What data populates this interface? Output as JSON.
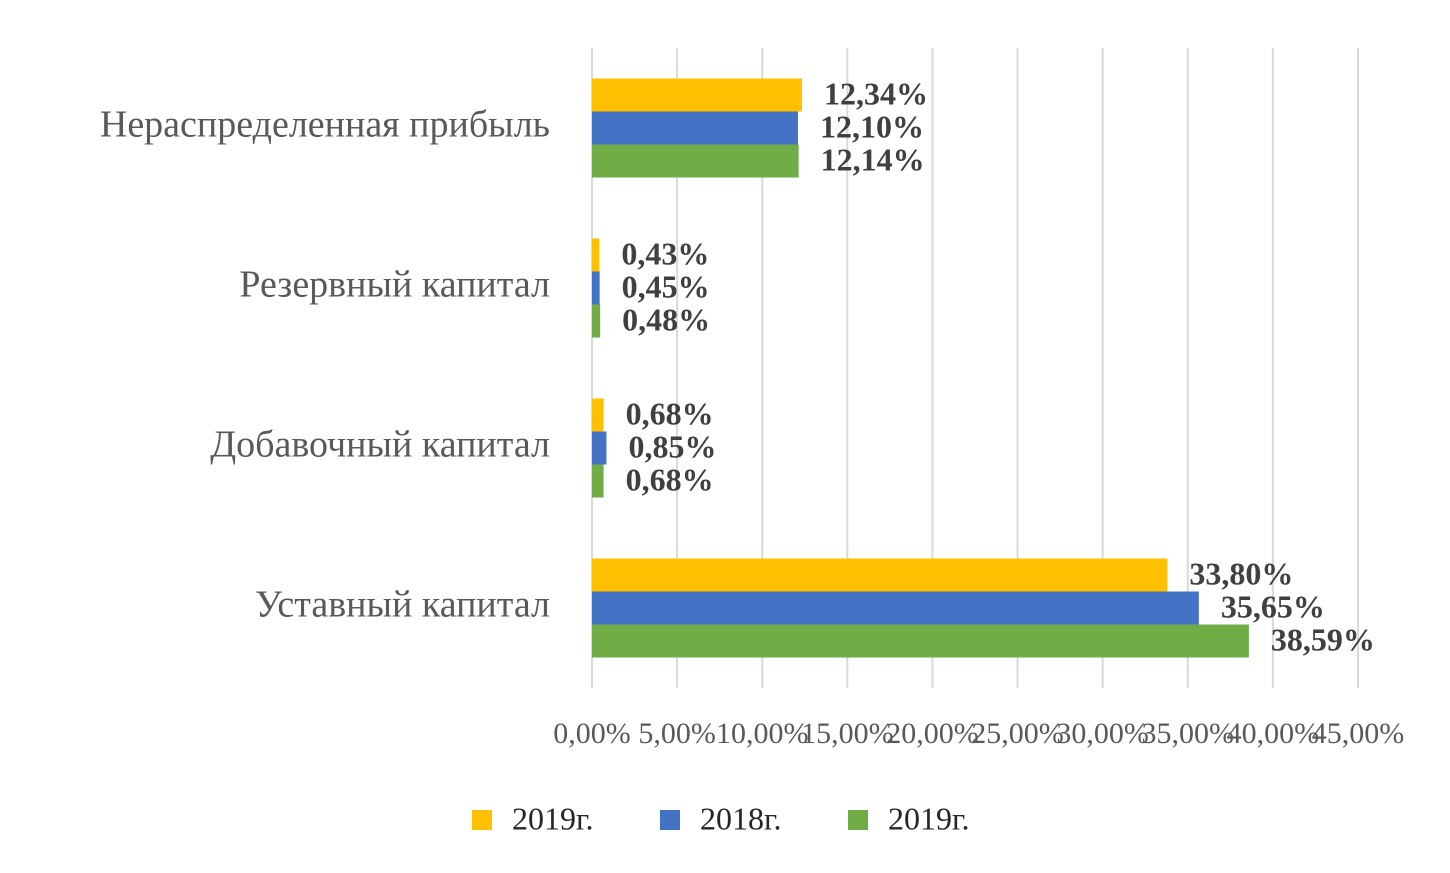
{
  "chart_data": {
    "type": "barh",
    "categories": [
      "Нераспределенная прибыль",
      "Резервный капитал",
      "Добавочный капитал",
      "Уставный капитал"
    ],
    "series": [
      {
        "name": "2019г.",
        "color": "#FFC000",
        "values": [
          12.34,
          0.43,
          0.68,
          33.8
        ],
        "value_labels": [
          "12,34%",
          "0,43%",
          "0,68%",
          "33,80%"
        ]
      },
      {
        "name": "2018г.",
        "color": "#4472C4",
        "values": [
          12.1,
          0.45,
          0.85,
          35.65
        ],
        "value_labels": [
          "12,10%",
          "0,45%",
          "0,85%",
          "35,65%"
        ]
      },
      {
        "name": "2019г.",
        "color": "#70AD47",
        "values": [
          12.14,
          0.48,
          0.68,
          38.59
        ],
        "value_labels": [
          "12,14%",
          "0,48%",
          "0,68%",
          "38,59%"
        ]
      }
    ],
    "xlim": [
      0,
      45
    ],
    "xticks": [
      {
        "value": 0,
        "label": "0,00%"
      },
      {
        "value": 5,
        "label": "5,00%"
      },
      {
        "value": 10,
        "label": "10,00%"
      },
      {
        "value": 15,
        "label": "15,00%"
      },
      {
        "value": 20,
        "label": "20,00%"
      },
      {
        "value": 25,
        "label": "25,00%"
      },
      {
        "value": 30,
        "label": "30,00%"
      },
      {
        "value": 35,
        "label": "35,00%"
      },
      {
        "value": 40,
        "label": "40,00%"
      },
      {
        "value": 45,
        "label": "45,00%"
      }
    ],
    "grid": true
  }
}
